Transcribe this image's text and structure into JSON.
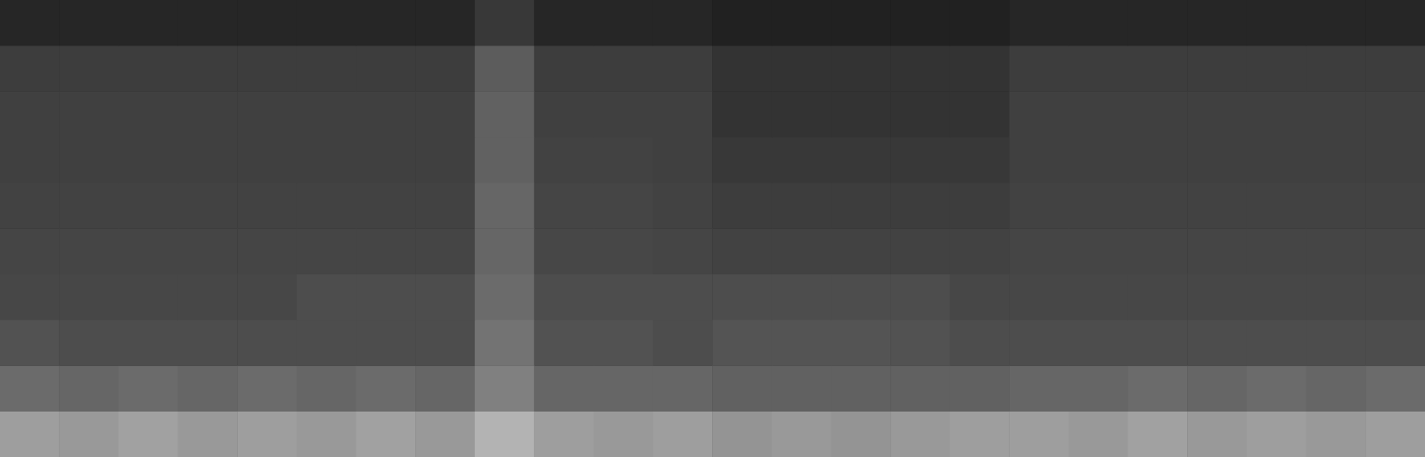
{
  "chart_data": {
    "type": "heatmap",
    "tick_labels": false,
    "color_range": [
      0,
      1
    ],
    "values": [
      [
        0.62,
        0.6,
        0.63,
        0.6,
        0.62,
        0.6,
        0.63,
        0.6,
        0.7,
        0.62,
        0.6,
        0.62,
        0.58,
        0.6,
        0.58,
        0.6,
        0.62,
        0.62,
        0.6,
        0.63,
        0.6,
        0.62,
        0.6,
        0.62
      ],
      [
        0.42,
        0.4,
        0.42,
        0.4,
        0.42,
        0.4,
        0.42,
        0.4,
        0.5,
        0.4,
        0.4,
        0.4,
        0.38,
        0.38,
        0.38,
        0.38,
        0.38,
        0.4,
        0.4,
        0.42,
        0.4,
        0.42,
        0.4,
        0.42
      ],
      [
        0.32,
        0.3,
        0.3,
        0.3,
        0.3,
        0.3,
        0.3,
        0.3,
        0.45,
        0.32,
        0.32,
        0.3,
        0.33,
        0.33,
        0.33,
        0.32,
        0.3,
        0.3,
        0.3,
        0.3,
        0.3,
        0.3,
        0.3,
        0.3
      ],
      [
        0.28,
        0.28,
        0.28,
        0.28,
        0.28,
        0.3,
        0.3,
        0.3,
        0.42,
        0.3,
        0.3,
        0.3,
        0.3,
        0.3,
        0.3,
        0.3,
        0.28,
        0.28,
        0.28,
        0.28,
        0.28,
        0.28,
        0.28,
        0.28
      ],
      [
        0.27,
        0.27,
        0.27,
        0.27,
        0.27,
        0.27,
        0.27,
        0.27,
        0.4,
        0.28,
        0.28,
        0.27,
        0.26,
        0.26,
        0.26,
        0.26,
        0.26,
        0.27,
        0.27,
        0.27,
        0.27,
        0.27,
        0.27,
        0.27
      ],
      [
        0.26,
        0.26,
        0.26,
        0.26,
        0.26,
        0.26,
        0.26,
        0.26,
        0.4,
        0.27,
        0.27,
        0.26,
        0.24,
        0.24,
        0.24,
        0.24,
        0.24,
        0.26,
        0.26,
        0.26,
        0.26,
        0.26,
        0.26,
        0.26
      ],
      [
        0.25,
        0.25,
        0.25,
        0.25,
        0.25,
        0.25,
        0.25,
        0.25,
        0.38,
        0.26,
        0.26,
        0.25,
        0.22,
        0.22,
        0.22,
        0.22,
        0.22,
        0.25,
        0.25,
        0.25,
        0.25,
        0.25,
        0.25,
        0.25
      ],
      [
        0.25,
        0.25,
        0.25,
        0.25,
        0.25,
        0.25,
        0.25,
        0.25,
        0.38,
        0.25,
        0.25,
        0.25,
        0.2,
        0.2,
        0.2,
        0.2,
        0.2,
        0.25,
        0.25,
        0.25,
        0.25,
        0.25,
        0.25,
        0.25
      ],
      [
        0.24,
        0.24,
        0.24,
        0.24,
        0.24,
        0.24,
        0.24,
        0.24,
        0.36,
        0.24,
        0.24,
        0.24,
        0.2,
        0.2,
        0.2,
        0.2,
        0.2,
        0.24,
        0.24,
        0.24,
        0.24,
        0.24,
        0.24,
        0.24
      ],
      [
        0.15,
        0.15,
        0.15,
        0.15,
        0.15,
        0.15,
        0.15,
        0.15,
        0.22,
        0.15,
        0.15,
        0.15,
        0.13,
        0.13,
        0.13,
        0.13,
        0.13,
        0.15,
        0.15,
        0.15,
        0.15,
        0.15,
        0.15,
        0.15
      ]
    ]
  }
}
